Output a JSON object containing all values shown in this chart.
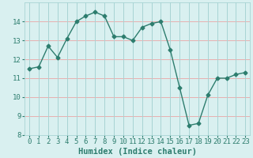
{
  "x": [
    0,
    1,
    2,
    3,
    4,
    5,
    6,
    7,
    8,
    9,
    10,
    11,
    12,
    13,
    14,
    15,
    16,
    17,
    18,
    19,
    20,
    21,
    22,
    23
  ],
  "y": [
    11.5,
    11.6,
    12.7,
    12.1,
    13.1,
    14.0,
    14.3,
    14.5,
    14.3,
    13.2,
    13.2,
    13.0,
    13.7,
    13.9,
    14.0,
    12.5,
    10.5,
    8.5,
    8.6,
    10.1,
    11.0,
    11.0,
    11.2,
    11.3
  ],
  "line_color": "#2d7d6e",
  "marker": "D",
  "marker_size": 2.5,
  "bg_color": "#d9f0f0",
  "hgrid_color": "#e8b0b0",
  "vgrid_color": "#a8d4d4",
  "xlabel": "Humidex (Indice chaleur)",
  "ylim": [
    8,
    15
  ],
  "xlim": [
    -0.5,
    23.5
  ],
  "yticks": [
    8,
    9,
    10,
    11,
    12,
    13,
    14
  ],
  "xticks": [
    0,
    1,
    2,
    3,
    4,
    5,
    6,
    7,
    8,
    9,
    10,
    11,
    12,
    13,
    14,
    15,
    16,
    17,
    18,
    19,
    20,
    21,
    22,
    23
  ],
  "xlabel_fontsize": 7.5,
  "tick_fontsize": 6.5,
  "tick_color": "#2d7d6e",
  "linewidth": 1.0
}
